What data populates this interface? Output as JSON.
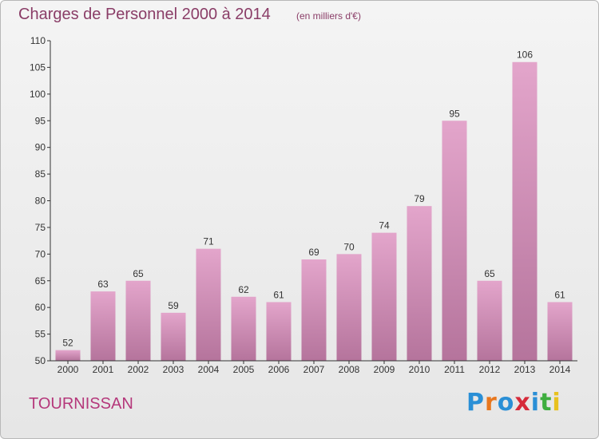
{
  "header": {
    "title": "Charges de Personnel 2000 à 2014",
    "subtitle": "(en milliers d'€)"
  },
  "footer": {
    "commune": "TOURNISSAN",
    "logo": "Proxiti",
    "logo_letters": [
      "P",
      "r",
      "o",
      "x",
      "i",
      "t",
      "i"
    ],
    "logo_colors": [
      "#2a8fd6",
      "#e8771e",
      "#2a8fd6",
      "#d62a3a",
      "#2a8fd6",
      "#3fae3f",
      "#e8c11e"
    ]
  },
  "chart_data": {
    "type": "bar",
    "title": "Charges de Personnel 2000 à 2014",
    "subtitle": "(en milliers d'€)",
    "xlabel": "",
    "ylabel": "",
    "categories": [
      "2000",
      "2001",
      "2002",
      "2003",
      "2004",
      "2005",
      "2006",
      "2007",
      "2008",
      "2009",
      "2010",
      "2011",
      "2012",
      "2013",
      "2014"
    ],
    "values": [
      52,
      63,
      65,
      59,
      71,
      62,
      61,
      69,
      70,
      74,
      79,
      95,
      65,
      106,
      61
    ],
    "ylim": [
      50,
      110
    ],
    "yticks": [
      50,
      55,
      60,
      65,
      70,
      75,
      80,
      85,
      90,
      95,
      100,
      105,
      110
    ],
    "grid": false,
    "colors": {
      "bar_light": "#e3a5cb",
      "bar_dark": "#b5749c",
      "axis": "#333333"
    }
  }
}
